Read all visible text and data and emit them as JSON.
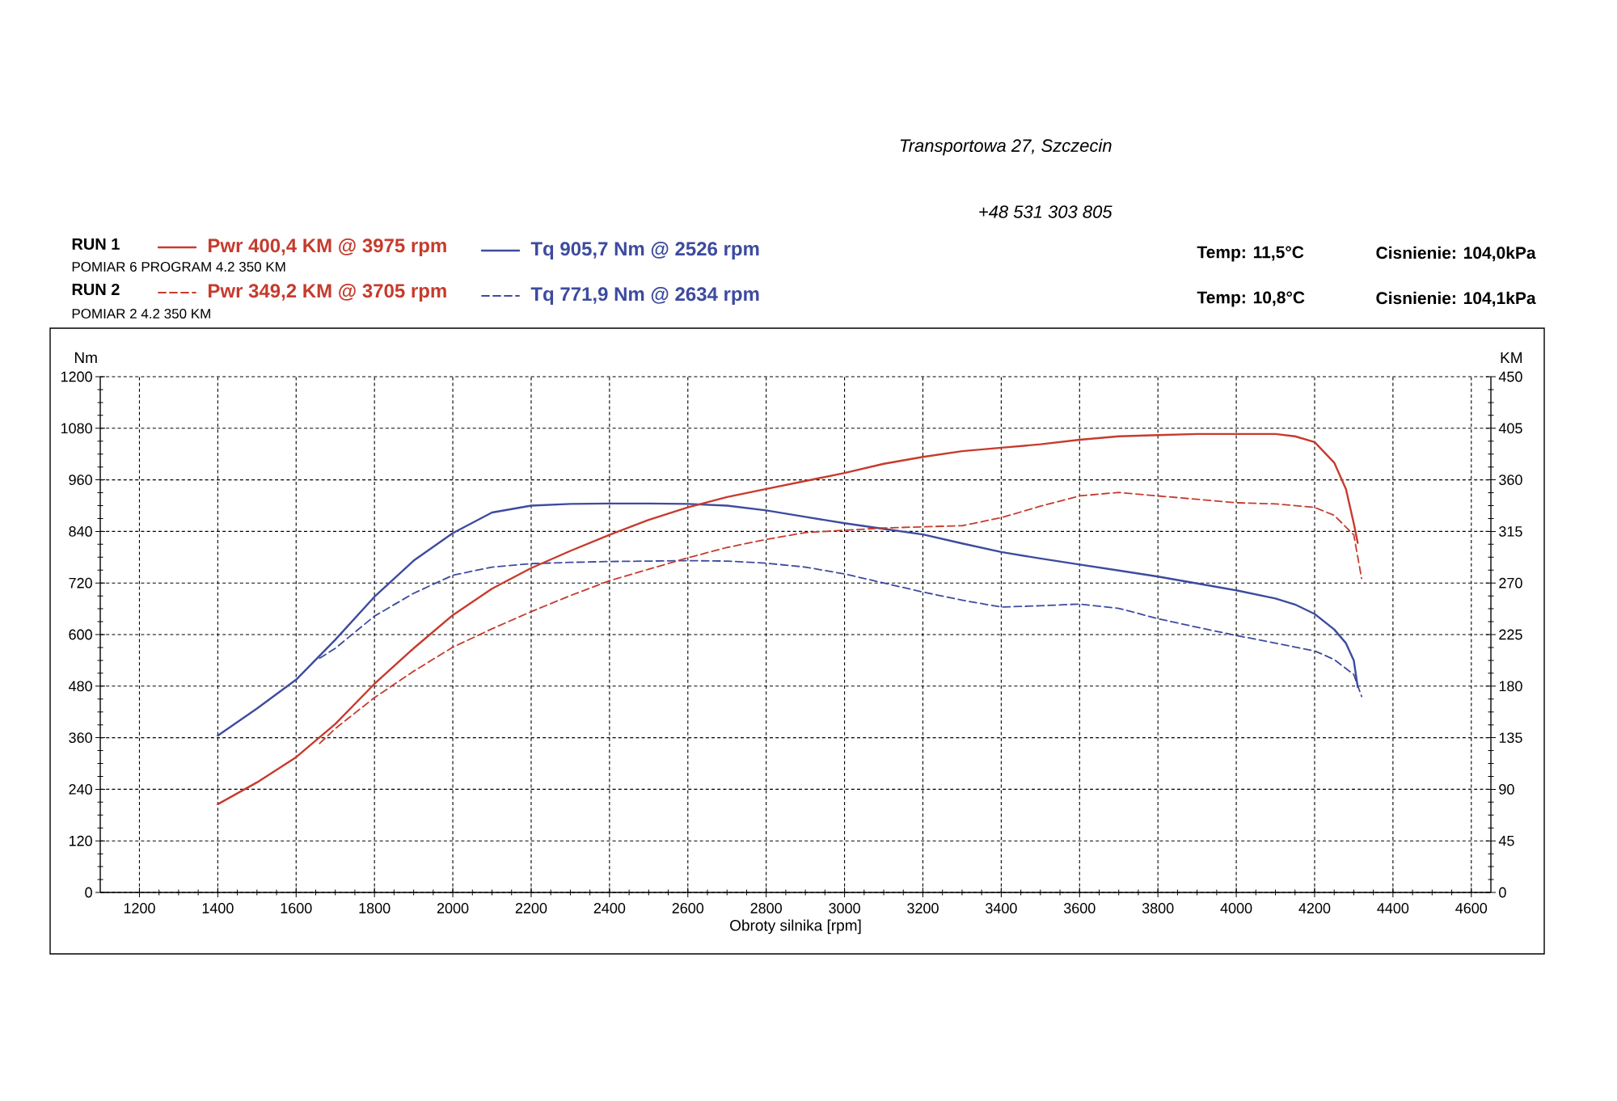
{
  "chart_data": {
    "type": "line",
    "xlabel": "Obroty silnika [rpm]",
    "ylabel": "Nm",
    "y2label": "KM",
    "xlim": [
      1100,
      4650
    ],
    "xticks": [
      1200,
      1400,
      1600,
      1800,
      2000,
      2200,
      2400,
      2600,
      2800,
      3000,
      3200,
      3400,
      3600,
      3800,
      4000,
      4200,
      4400,
      4600
    ],
    "ylim": [
      0,
      1200
    ],
    "yticks": [
      0,
      120,
      240,
      360,
      480,
      600,
      720,
      840,
      960,
      1080,
      1200
    ],
    "y2lim": [
      0,
      450
    ],
    "y2ticks": [
      0,
      45,
      90,
      135,
      180,
      225,
      270,
      315,
      360,
      405,
      450
    ],
    "grid": true,
    "legend": "top left",
    "series": [
      {
        "name": "Pwr 400,4 KM @ 3975 rpm",
        "color": "#c63b2d",
        "axis": "y2",
        "line_style": "solid",
        "x": [
          1400,
          1500,
          1600,
          1700,
          1800,
          1900,
          2000,
          2100,
          2200,
          2300,
          2400,
          2500,
          2600,
          2700,
          2800,
          2900,
          3000,
          3100,
          3200,
          3300,
          3400,
          3500,
          3600,
          3700,
          3800,
          3900,
          4000,
          4100,
          4150,
          4200,
          4250,
          4280,
          4300,
          4310
        ],
        "values": [
          77,
          96,
          118,
          147,
          182,
          213,
          242,
          265,
          283,
          298,
          312,
          325,
          336,
          345,
          352,
          359,
          366,
          374,
          380,
          385,
          388,
          391,
          395,
          398,
          399,
          400,
          400,
          400,
          398,
          393,
          375,
          352,
          322,
          305
        ]
      },
      {
        "name": "Tq 905,7 Nm @ 2526 rpm",
        "color": "#3d4b9e",
        "line_style": "solid",
        "x": [
          1400,
          1500,
          1600,
          1700,
          1800,
          1900,
          2000,
          2100,
          2200,
          2300,
          2400,
          2500,
          2600,
          2700,
          2800,
          2900,
          3000,
          3100,
          3200,
          3300,
          3400,
          3500,
          3600,
          3700,
          3800,
          3900,
          4000,
          4100,
          4150,
          4200,
          4250,
          4280,
          4300,
          4310
        ],
        "values": [
          365,
          428,
          495,
          588,
          688,
          772,
          836,
          884,
          900,
          904,
          905,
          905,
          904,
          900,
          889,
          874,
          859,
          846,
          833,
          812,
          792,
          777,
          763,
          749,
          735,
          719,
          703,
          684,
          670,
          648,
          612,
          580,
          540,
          478
        ]
      },
      {
        "name": "Pwr 349,2 KM @ 3705 rpm",
        "color": "#c63b2d",
        "axis": "y2",
        "line_style": "dashed",
        "x": [
          1660,
          1700,
          1800,
          1900,
          2000,
          2100,
          2200,
          2300,
          2400,
          2500,
          2600,
          2700,
          2800,
          2900,
          3000,
          3100,
          3200,
          3300,
          3400,
          3500,
          3600,
          3700,
          3800,
          3900,
          4000,
          4100,
          4200,
          4250,
          4300,
          4320
        ],
        "values": [
          130,
          143,
          170,
          193,
          214,
          230,
          245,
          259,
          272,
          282,
          292,
          301,
          308,
          314,
          316,
          318,
          319,
          320,
          327,
          337,
          346,
          349,
          346,
          343,
          340,
          339,
          336,
          329,
          312,
          274
        ]
      },
      {
        "name": "Tq 771,9 Nm @ 2634 rpm",
        "color": "#3d4b9e",
        "line_style": "dashed",
        "x": [
          1660,
          1700,
          1800,
          1900,
          2000,
          2100,
          2200,
          2300,
          2400,
          2500,
          2600,
          2700,
          2800,
          2900,
          3000,
          3100,
          3200,
          3300,
          3400,
          3500,
          3600,
          3700,
          3800,
          3900,
          4000,
          4100,
          4200,
          4250,
          4300,
          4320
        ],
        "values": [
          545,
          568,
          643,
          696,
          738,
          757,
          765,
          768,
          770,
          771,
          772,
          771,
          766,
          757,
          741,
          720,
          699,
          680,
          664,
          667,
          671,
          661,
          637,
          617,
          598,
          580,
          562,
          542,
          507,
          456
        ]
      }
    ],
    "annotations": [
      "RUN 1",
      "POMIAR 6 PROGRAM 4.2 350 KM",
      "RUN 2",
      "POMIAR 2 4.2 350 KM",
      "Temp: 11,5°C",
      "Cisnienie: 104,0kPa",
      "Temp: 10,8°C",
      "Cisnienie: 104,1kPa",
      "Transportowa 27, Szczecin",
      "+48 531 303 805"
    ]
  }
}
